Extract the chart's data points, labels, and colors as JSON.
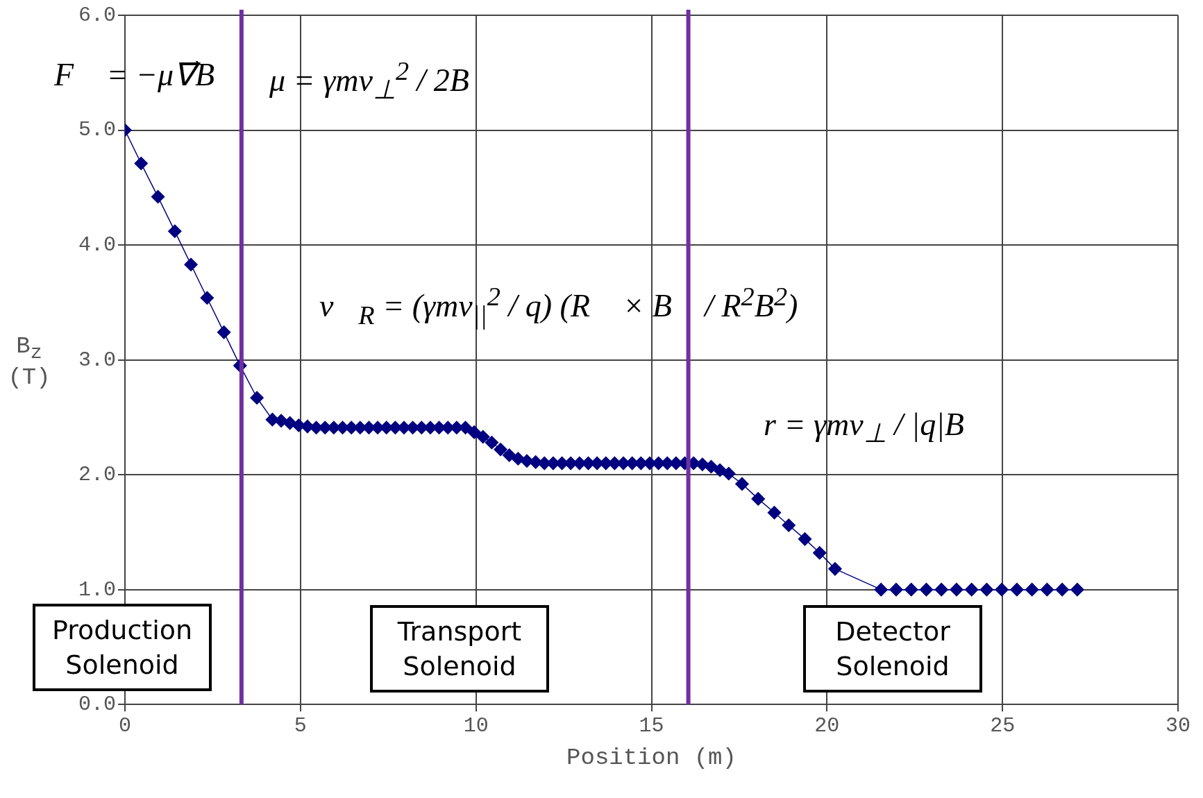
{
  "chart_data": {
    "type": "line",
    "xlabel": "Position (m)",
    "ylabel": "B$_{z}$ (T)",
    "x": [
      0,
      0.46,
      0.94,
      1.42,
      1.88,
      2.34,
      2.82,
      3.28,
      3.76,
      4.2,
      4.45,
      4.7,
      4.95,
      5.2,
      5.45,
      5.7,
      5.95,
      6.2,
      6.45,
      6.7,
      6.95,
      7.2,
      7.45,
      7.7,
      7.95,
      8.2,
      8.45,
      8.7,
      8.95,
      9.2,
      9.45,
      9.7,
      9.95,
      10.2,
      10.45,
      10.7,
      10.95,
      11.2,
      11.45,
      11.7,
      11.95,
      12.2,
      12.45,
      12.7,
      12.95,
      13.2,
      13.45,
      13.7,
      13.95,
      14.2,
      14.45,
      14.7,
      14.95,
      15.2,
      15.45,
      15.7,
      15.95,
      16.2,
      16.45,
      16.7,
      16.95,
      17.2,
      17.58,
      18.04,
      18.5,
      18.91,
      19.37,
      19.79,
      20.23,
      21.54,
      21.97,
      22.4,
      22.83,
      23.26,
      23.69,
      24.12,
      24.55,
      24.98,
      25.41,
      25.84,
      26.27,
      26.7,
      27.13
    ],
    "series": [
      {
        "color": "#000080",
        "values": [
          5.0,
          4.71,
          4.42,
          4.12,
          3.83,
          3.54,
          3.24,
          2.95,
          2.67,
          2.48,
          2.47,
          2.45,
          2.43,
          2.42,
          2.41,
          2.41,
          2.41,
          2.41,
          2.41,
          2.41,
          2.41,
          2.41,
          2.41,
          2.41,
          2.41,
          2.41,
          2.41,
          2.41,
          2.41,
          2.41,
          2.41,
          2.41,
          2.37,
          2.33,
          2.28,
          2.22,
          2.17,
          2.14,
          2.12,
          2.11,
          2.1,
          2.1,
          2.1,
          2.1,
          2.1,
          2.1,
          2.1,
          2.1,
          2.1,
          2.1,
          2.1,
          2.1,
          2.1,
          2.1,
          2.1,
          2.1,
          2.1,
          2.1,
          2.09,
          2.07,
          2.04,
          2.01,
          1.92,
          1.79,
          1.67,
          1.56,
          1.44,
          1.32,
          1.18,
          1.0,
          1.0,
          1.0,
          1.0,
          1.0,
          1.0,
          1.0,
          1.0,
          1.0,
          1.0,
          1.0,
          1.0,
          1.0,
          1.0
        ]
      }
    ],
    "xlim": [
      0,
      30
    ],
    "xticks": [
      0,
      5,
      10,
      15,
      20,
      25,
      30
    ],
    "ylim": [
      0,
      6
    ],
    "yticks": [
      {
        "value": 0,
        "label": "0.0"
      },
      {
        "value": 1,
        "label": "1.0"
      },
      {
        "value": 2,
        "label": "2.0"
      },
      {
        "value": 3,
        "label": "3.0"
      },
      {
        "value": 4,
        "label": "4.0"
      },
      {
        "value": 5,
        "label": "5.0"
      },
      {
        "value": 6,
        "label": "6.0"
      }
    ],
    "grid": true,
    "legend": false,
    "marker": "diamond",
    "line_style": "solid",
    "ref_lines": [
      {
        "axis": "x",
        "value": 3.32,
        "color": "#7030a0"
      },
      {
        "axis": "x",
        "value": 16.05,
        "color": "#7030a0"
      }
    ],
    "annotations": [
      "F⃗ = −μ∇⃗B",
      "μ = γmv$_{⊥}$$^{2}$ / 2B",
      "v⃗$_{R}$ = (γmv$_{||}$$^{2}$ / q) (R⃗ × B⃗ / R$^{2}$B$^{2}$)",
      "r = γmv$_{⊥}$ / |q|B",
      "Production Solenoid",
      "Transport Solenoid",
      "Detector Solenoid"
    ]
  }
}
